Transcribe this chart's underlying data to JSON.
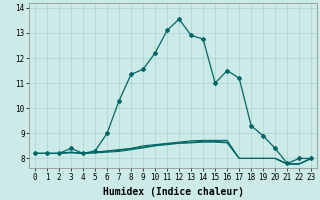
{
  "xlabel": "Humidex (Indice chaleur)",
  "background_color": "#cceae7",
  "grid_color": "#aad4d0",
  "line_color": "#006666",
  "xlim": [
    -0.5,
    23.5
  ],
  "ylim": [
    7.6,
    14.2
  ],
  "yticks": [
    8,
    9,
    10,
    11,
    12,
    13,
    14
  ],
  "xticks": [
    0,
    1,
    2,
    3,
    4,
    5,
    6,
    7,
    8,
    9,
    10,
    11,
    12,
    13,
    14,
    15,
    16,
    17,
    18,
    19,
    20,
    21,
    22,
    23
  ],
  "series": [
    [
      8.2,
      8.2,
      8.2,
      8.4,
      8.2,
      8.3,
      9.0,
      10.3,
      11.35,
      11.55,
      12.2,
      13.1,
      13.55,
      12.9,
      12.75,
      11.0,
      11.5,
      11.2,
      9.3,
      8.9,
      8.4,
      7.8,
      8.0,
      8.0
    ],
    [
      8.2,
      8.2,
      8.2,
      8.25,
      8.2,
      8.25,
      8.3,
      8.35,
      8.4,
      8.5,
      8.55,
      8.6,
      8.65,
      8.7,
      8.72,
      8.72,
      8.72,
      8.0,
      8.0,
      8.0,
      8.0,
      7.78,
      7.78,
      8.0
    ],
    [
      8.2,
      8.2,
      8.2,
      8.25,
      8.2,
      8.25,
      8.28,
      8.32,
      8.38,
      8.45,
      8.52,
      8.58,
      8.62,
      8.65,
      8.68,
      8.68,
      8.65,
      8.0,
      8.0,
      8.0,
      8.0,
      7.78,
      7.78,
      8.0
    ],
    [
      8.2,
      8.2,
      8.2,
      8.22,
      8.2,
      8.22,
      8.25,
      8.28,
      8.35,
      8.42,
      8.5,
      8.55,
      8.6,
      8.62,
      8.65,
      8.65,
      8.62,
      8.0,
      8.0,
      8.0,
      8.0,
      7.78,
      7.78,
      8.0
    ]
  ],
  "tick_fontsize": 5.5,
  "xlabel_fontsize": 7,
  "marker_style": "D",
  "marker_size": 2.0
}
